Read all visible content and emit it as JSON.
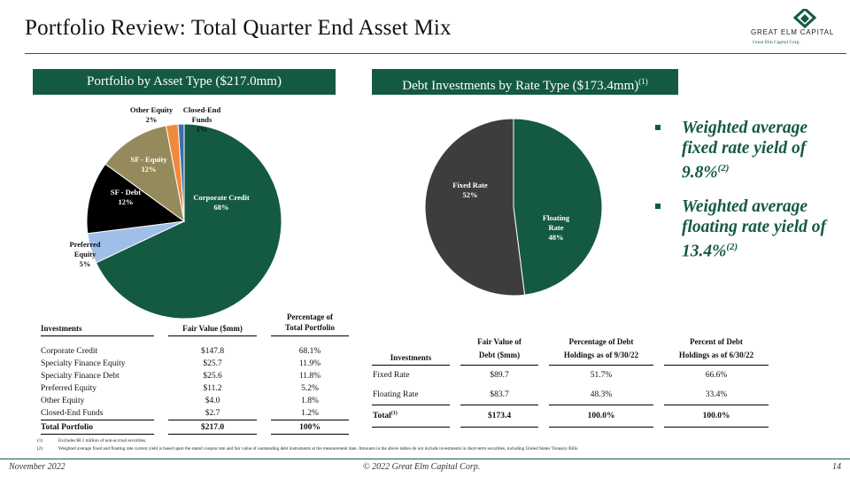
{
  "header": {
    "title": "Portfolio Review: Total Quarter End Asset Mix",
    "logo_text": "GREAT ELM CAPITAL",
    "logo_sub": "Great Elm Capital Corp."
  },
  "left_panel": {
    "band_title": "Portfolio by Asset Type ($217.0mm)",
    "pie_labels": {
      "corporate_credit": [
        "Corporate Credit",
        "68%"
      ],
      "preferred_equity": [
        "Preferred",
        "Equity",
        "5%"
      ],
      "sf_debt": [
        "SF - Debt",
        "12%"
      ],
      "sf_equity": [
        "SF - Equity",
        "12%"
      ],
      "other_equity": [
        "Other Equity",
        "2%"
      ],
      "closed_end": [
        "Closed-End",
        "Funds",
        "1%"
      ]
    },
    "table": {
      "headers": [
        "Investments",
        "Fair Value ($mm)",
        "Percentage of",
        "Total Portfolio"
      ],
      "rows": [
        [
          "Corporate Credit",
          "$147.8",
          "68.1%"
        ],
        [
          "Specialty Finance Equity",
          "$25.7",
          "11.9%"
        ],
        [
          "Specialty Finance Debt",
          "$25.6",
          "11.8%"
        ],
        [
          "Preferred Equity",
          "$11.2",
          "5.2%"
        ],
        [
          "Other Equity",
          "$4.0",
          "1.8%"
        ],
        [
          "Closed-End Funds",
          "$2.7",
          "1.2%"
        ]
      ],
      "total": [
        "Total Portfolio",
        "$217.0",
        "100%"
      ]
    }
  },
  "right_panel": {
    "band_title": "Debt Investments by Rate Type ($173.4mm)",
    "band_sup": "(1)",
    "pie_labels": {
      "fixed": [
        "Fixed Rate",
        "52%"
      ],
      "floating": [
        "Floating",
        "Rate",
        "48%"
      ]
    },
    "bullets": [
      {
        "text": "Weighted average fixed rate yield of 9.8%",
        "sup": "(2)"
      },
      {
        "text": "Weighted average floating rate yield of 13.4%",
        "sup": "(2)"
      }
    ],
    "table": {
      "headers": [
        "Investments",
        "Fair Value of",
        "Debt ($mm)",
        "Percentage of Debt",
        "Holdings as of 9/30/22",
        "Percent of Debt",
        "Holdings as of 6/30/22"
      ],
      "rows": [
        [
          "Fixed Rate",
          "$89.7",
          "51.7%",
          "66.6%"
        ],
        [
          "Floating Rate",
          "$83.7",
          "48.3%",
          "33.4%"
        ]
      ],
      "total": [
        "Total",
        "(1)",
        "$173.4",
        "100.0%",
        "100.0%"
      ]
    }
  },
  "chart_data": [
    {
      "type": "pie",
      "title": "Portfolio by Asset Type ($217.0mm)",
      "categories": [
        "Corporate Credit",
        "Preferred Equity",
        "SF - Debt",
        "SF - Equity",
        "Other Equity",
        "Closed-End Funds"
      ],
      "values": [
        68,
        5,
        12,
        12,
        2,
        1
      ],
      "colors": [
        "#145a42",
        "#9fbfe8",
        "#000000",
        "#948a5c",
        "#ef8a3c",
        "#3a6fb0"
      ]
    },
    {
      "type": "pie",
      "title": "Debt Investments by Rate Type ($173.4mm)",
      "categories": [
        "Floating Rate",
        "Fixed Rate"
      ],
      "values": [
        48,
        52
      ],
      "colors": [
        "#145a42",
        "#3d3d3d"
      ]
    }
  ],
  "footnotes": [
    {
      "num": "(1)",
      "text": "Excludes $0.1 million of non-accrual securities."
    },
    {
      "num": "(2)",
      "text": "Weighted average fixed and floating rate current yield is based upon the stated coupon rate and fair value of outstanding debt instruments at the measurement date. Amounts in the above tables do not include investments in short-term securities, including United States Treasury Bills."
    }
  ],
  "footer": {
    "date": "November 2022",
    "copyright": "© 2022 Great Elm Capital Corp.",
    "page": "14"
  }
}
